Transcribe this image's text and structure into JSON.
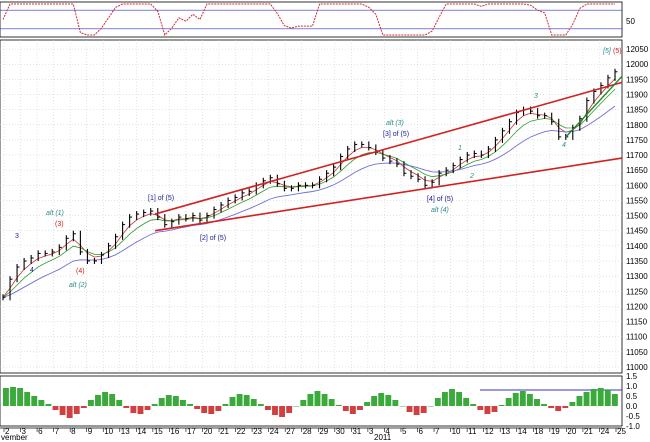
{
  "chart_data": {
    "type": "line",
    "title": "",
    "colors": {
      "price": "#000000",
      "channel": "#d42020",
      "ema_fast": "#c83232",
      "ema_mid": "#2e9a2e",
      "ema_slow": "#7070d8",
      "trendline_green": "#1a8a2a",
      "wave_label_blue": "#1a1a9a",
      "wave_label_teal": "#2a8c8c",
      "wave_label_red": "#cc2020",
      "osc_line": "#cc3030",
      "osc_band": "#3333cc",
      "hist_up": "#3aaa3a",
      "hist_down": "#d04040"
    },
    "main_panel": {
      "y_axis": {
        "ylim": [
          10980,
          12080
        ],
        "ticks": [
          "12050",
          "12000",
          "11950",
          "11900",
          "11850",
          "11800",
          "11750",
          "11700",
          "11650",
          "11600",
          "11550",
          "11500",
          "11450",
          "11400",
          "11350",
          "11300",
          "11250",
          "11200",
          "11150",
          "11100",
          "11050",
          "11000"
        ]
      },
      "x_axis": {
        "ticks": [
          "2",
          "3",
          "6",
          "7",
          "8",
          "9",
          "10",
          "13",
          "14",
          "15",
          "16",
          "17",
          "20",
          "21",
          "22",
          "23",
          "24",
          "27",
          "28",
          "29",
          "30",
          "31",
          "3",
          "4",
          "5",
          "6",
          "7",
          "10",
          "11",
          "12",
          "13",
          "14",
          "18",
          "19",
          "20",
          "21",
          "24",
          "25"
        ],
        "month_labels": [
          "vember",
          "2011"
        ]
      },
      "close": [
        11230,
        11290,
        11330,
        11350,
        11360,
        11375,
        11375,
        11380,
        11395,
        11425,
        11440,
        11380,
        11350,
        11350,
        11370,
        11400,
        11430,
        11470,
        11495,
        11505,
        11510,
        11515,
        11495,
        11470,
        11480,
        11495,
        11490,
        11500,
        11485,
        11500,
        11520,
        11535,
        11550,
        11560,
        11575,
        11580,
        11600,
        11615,
        11625,
        11605,
        11590,
        11590,
        11600,
        11600,
        11600,
        11620,
        11640,
        11660,
        11695,
        11720,
        11735,
        11735,
        11725,
        11710,
        11690,
        11680,
        11670,
        11640,
        11630,
        11620,
        11600,
        11610,
        11640,
        11650,
        11665,
        11685,
        11700,
        11705,
        11700,
        11720,
        11750,
        11780,
        11810,
        11840,
        11850,
        11845,
        11830,
        11830,
        11810,
        11760,
        11760,
        11790,
        11820,
        11880,
        11910,
        11930,
        11955,
        11975
      ],
      "channel_upper": [
        [
          11400,
          11505
        ],
        [
          11970,
          11940
        ]
      ],
      "channel_lower": [
        [
          11400,
          11450
        ],
        [
          11970,
          11690
        ]
      ],
      "wave_labels": {
        "alt1": "alt (1)",
        "w3a": "3",
        "w3b": "(3)",
        "w4a": "(4)",
        "w4b": "(4)",
        "w3box": "3",
        "w4box": "4",
        "alt2": "alt (2)",
        "w1of5": "[1] of (5)",
        "w2of5": "[2] of (5)",
        "alt3": "alt (3)",
        "w3of5": "[3] of (5)",
        "w4of5": "[4] of (5)",
        "alt4": "alt (4)",
        "i1": "1",
        "i2": "2",
        "i3": "3",
        "i4": "4",
        "i5": "[5]",
        "i5r": "(5)"
      }
    },
    "top_panel": {
      "y_axis": {
        "ylim": [
          0,
          100
        ],
        "ticks": [
          "50"
        ]
      },
      "band_levels": [
        80,
        20
      ]
    },
    "bottom_panel": {
      "y_axis": {
        "ylim": [
          -1.0,
          1.5
        ],
        "ticks": [
          "1.5",
          "1.0",
          "0.5",
          "0.0",
          "-0.5",
          "-1.0"
        ]
      },
      "band_level": 0.8,
      "histogram": [
        0.9,
        0.95,
        0.9,
        0.7,
        0.5,
        0.3,
        0.1,
        -0.2,
        -0.45,
        -0.6,
        -0.4,
        -0.1,
        0.3,
        0.55,
        0.7,
        0.6,
        0.3,
        -0.1,
        -0.35,
        -0.4,
        -0.2,
        0.1,
        0.4,
        0.55,
        0.5,
        0.3,
        0.1,
        -0.15,
        -0.35,
        -0.4,
        -0.25,
        0.1,
        0.45,
        0.6,
        0.55,
        0.35,
        0.1,
        -0.2,
        -0.45,
        -0.55,
        -0.35,
        0.0,
        0.3,
        0.6,
        0.75,
        0.6,
        0.35,
        0.05,
        -0.25,
        -0.4,
        -0.2,
        0.2,
        0.5,
        0.65,
        0.55,
        0.3,
        0.0,
        -0.3,
        -0.45,
        -0.35,
        0.0,
        0.4,
        0.7,
        0.85,
        0.7,
        0.4,
        0.1,
        -0.2,
        -0.4,
        -0.3,
        0.05,
        0.4,
        0.65,
        0.75,
        0.6,
        0.35,
        0.1,
        -0.1,
        -0.25,
        -0.1,
        0.2,
        0.5,
        0.7,
        0.85,
        0.9,
        0.8,
        0.6
      ]
    }
  }
}
